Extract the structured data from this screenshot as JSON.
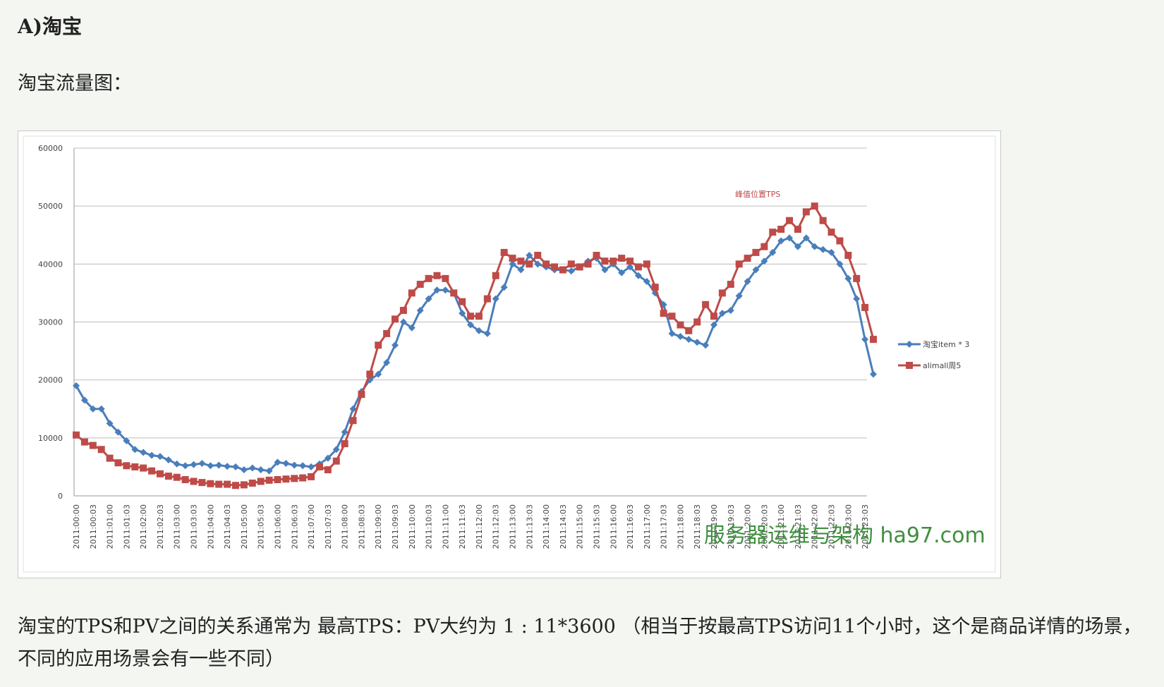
{
  "heading": "A)淘宝",
  "caption": "淘宝流量图：",
  "chart_data": {
    "type": "line",
    "annotation": "峰值位置TPS",
    "watermark": "服务器运维与架构 ha97.com",
    "categories": [
      "2011:00:00",
      null,
      "2011:00:03",
      null,
      "2011:01:00",
      null,
      "2011:01:03",
      null,
      "2011:02:00",
      null,
      "2011:02:03",
      null,
      "2011:03:00",
      null,
      "2011:03:03",
      null,
      "2011:04:00",
      null,
      "2011:04:03",
      null,
      "2011:05:00",
      null,
      "2011:05:03",
      null,
      "2011:06:00",
      null,
      "2011:06:03",
      null,
      "2011:07:00",
      null,
      "2011:07:03",
      null,
      "2011:08:00",
      null,
      "2011:08:03",
      null,
      "2011:09:00",
      null,
      "2011:09:03",
      null,
      "2011:10:00",
      null,
      "2011:10:03",
      null,
      "2011:11:00",
      null,
      "2011:11:03",
      null,
      "2011:12:00",
      null,
      "2011:12:03",
      null,
      "2011:13:00",
      null,
      "2011:13:03",
      null,
      "2011:14:00",
      null,
      "2011:14:03",
      null,
      "2011:15:00",
      null,
      "2011:15:03",
      null,
      "2011:16:00",
      null,
      "2011:16:03",
      null,
      "2011:17:00",
      null,
      "2011:17:03",
      null,
      "2011:18:00",
      null,
      "2011:18:03",
      null,
      "2011:19:00",
      null,
      "2011:19:03",
      null,
      "2011:20:00",
      null,
      "2011:20:03",
      null,
      "2011:21:00",
      null,
      "2011:21:03",
      null,
      "2011:22:00",
      null,
      "2011:22:03",
      null,
      "2011:23:00",
      null,
      "2011:23:03",
      null
    ],
    "series": [
      {
        "name": "淘宝item * 3",
        "color": "#4a7ebb",
        "marker": "diamond",
        "values": [
          19000,
          16500,
          15000,
          15000,
          12500,
          11000,
          9500,
          8000,
          7500,
          7000,
          6800,
          6200,
          5500,
          5200,
          5400,
          5600,
          5200,
          5300,
          5100,
          5000,
          4500,
          4800,
          4500,
          4300,
          5800,
          5600,
          5300,
          5200,
          5000,
          5500,
          6500,
          8000,
          11000,
          15000,
          18000,
          20000,
          21000,
          23000,
          26000,
          30000,
          29000,
          32000,
          34000,
          35500,
          35500,
          35000,
          31500,
          29500,
          28500,
          28000,
          34000,
          36000,
          40000,
          39000,
          41500,
          40000,
          39500,
          39000,
          39000,
          38800,
          39500,
          40500,
          41000,
          39000,
          40000,
          38500,
          39500,
          38000,
          37000,
          35000,
          33000,
          28000,
          27500,
          27000,
          26500,
          26000,
          29500,
          31500,
          32000,
          34500,
          37000,
          39000,
          40500,
          42000,
          44000,
          44500,
          43000,
          44500,
          43000,
          42500,
          42000,
          40000,
          37500,
          34000,
          27000,
          21000
        ]
      },
      {
        "name": "alimall周5",
        "color": "#be4b48",
        "marker": "square",
        "values": [
          10500,
          9300,
          8700,
          8000,
          6500,
          5700,
          5200,
          5000,
          4800,
          4300,
          3800,
          3400,
          3200,
          2800,
          2500,
          2300,
          2100,
          2000,
          2000,
          1800,
          1900,
          2200,
          2500,
          2700,
          2800,
          2900,
          3000,
          3100,
          3300,
          5000,
          4500,
          6000,
          9000,
          13000,
          17500,
          21000,
          26000,
          28000,
          30500,
          32000,
          35000,
          36500,
          37500,
          38000,
          37500,
          35000,
          33500,
          31000,
          31000,
          34000,
          38000,
          42000,
          41000,
          40500,
          40000,
          41500,
          40000,
          39500,
          39000,
          40000,
          39500,
          40000,
          41500,
          40500,
          40500,
          41000,
          40500,
          39500,
          40000,
          36000,
          31500,
          31000,
          29500,
          28500,
          30000,
          33000,
          31000,
          35000,
          36500,
          40000,
          41000,
          42000,
          43000,
          45500,
          46000,
          47500,
          46000,
          49000,
          50000,
          47500,
          45500,
          44000,
          41500,
          37500,
          32500,
          27000
        ]
      }
    ],
    "ylim": [
      0,
      60000
    ],
    "yticks": [
      0,
      10000,
      20000,
      30000,
      40000,
      50000,
      60000
    ],
    "grid": true,
    "legend": "right"
  },
  "paragraph": "淘宝的TPS和PV之间的关系通常为 最高TPS：PV大约为 1 : 11*3600 （相当于按最高TPS访问11个小时，这个是商品详情的场景，不同的应用场景会有一些不同）"
}
